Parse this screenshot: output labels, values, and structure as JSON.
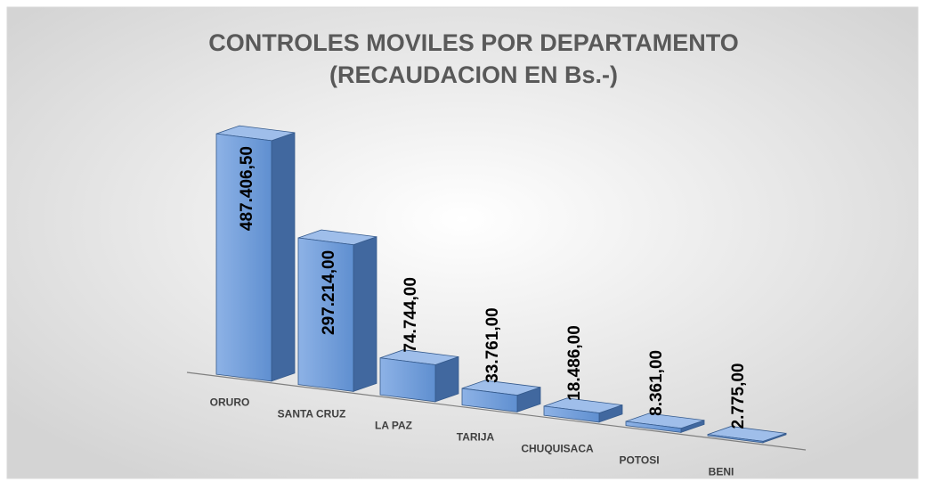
{
  "chart_data": {
    "type": "bar3d",
    "title": [
      "CONTROLES MOVILES POR DEPARTAMENTO",
      "(RECAUDACION EN Bs.-)"
    ],
    "categories": [
      "ORURO",
      "SANTA CRUZ",
      "LA PAZ",
      "TARIJA",
      "CHUQUISACA",
      "POTOSI",
      "BENI"
    ],
    "values": [
      487406.5,
      297214,
      74744,
      33761,
      18486,
      8361,
      2775
    ],
    "value_labels": [
      "487.406,50",
      "297.214,00",
      "74.744,00",
      "33.761,00",
      "18.486,00",
      "8.361,00",
      "2.775,00"
    ],
    "color": "#6a9ad8"
  }
}
